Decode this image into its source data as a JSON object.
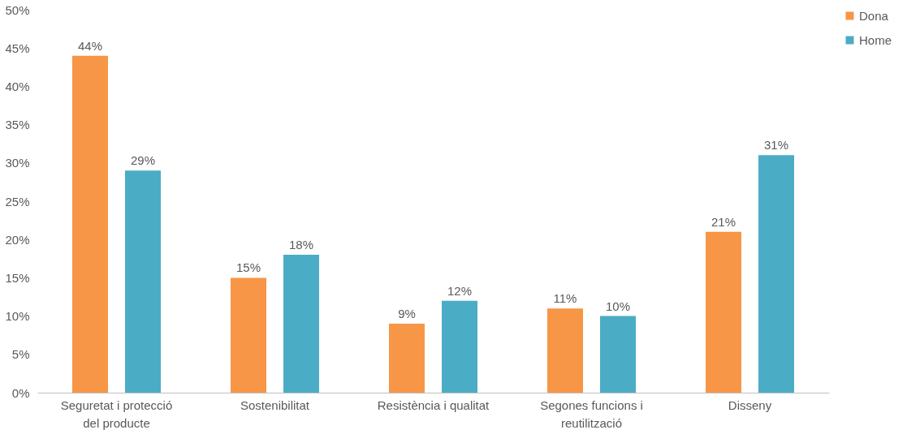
{
  "chart_data": {
    "type": "bar",
    "categories": [
      "Seguretat i protecció del producte",
      "Sostenibilitat",
      "Resistència i qualitat",
      "Segones funcions i reutilització",
      "Disseny"
    ],
    "series": [
      {
        "name": "Dona",
        "color": "#f79646",
        "values": [
          44,
          15,
          9,
          11,
          21
        ],
        "value_labels": [
          "44%",
          "15%",
          "9%",
          "11%",
          "21%"
        ]
      },
      {
        "name": "Home",
        "color": "#4bacc6",
        "values": [
          29,
          18,
          12,
          10,
          31
        ],
        "value_labels": [
          "29%",
          "18%",
          "12%",
          "10%",
          "31%"
        ]
      }
    ],
    "ylim": [
      0,
      50
    ],
    "yticks": [
      {
        "value": 0,
        "label": "0%"
      },
      {
        "value": 5,
        "label": "5%"
      },
      {
        "value": 10,
        "label": "10%"
      },
      {
        "value": 15,
        "label": "15%"
      },
      {
        "value": 20,
        "label": "20%"
      },
      {
        "value": 25,
        "label": "25%"
      },
      {
        "value": 30,
        "label": "30%"
      },
      {
        "value": 35,
        "label": "35%"
      },
      {
        "value": 40,
        "label": "40%"
      },
      {
        "value": 45,
        "label": "45%"
      },
      {
        "value": 50,
        "label": "50%"
      }
    ],
    "grid": false,
    "legend": "right"
  }
}
